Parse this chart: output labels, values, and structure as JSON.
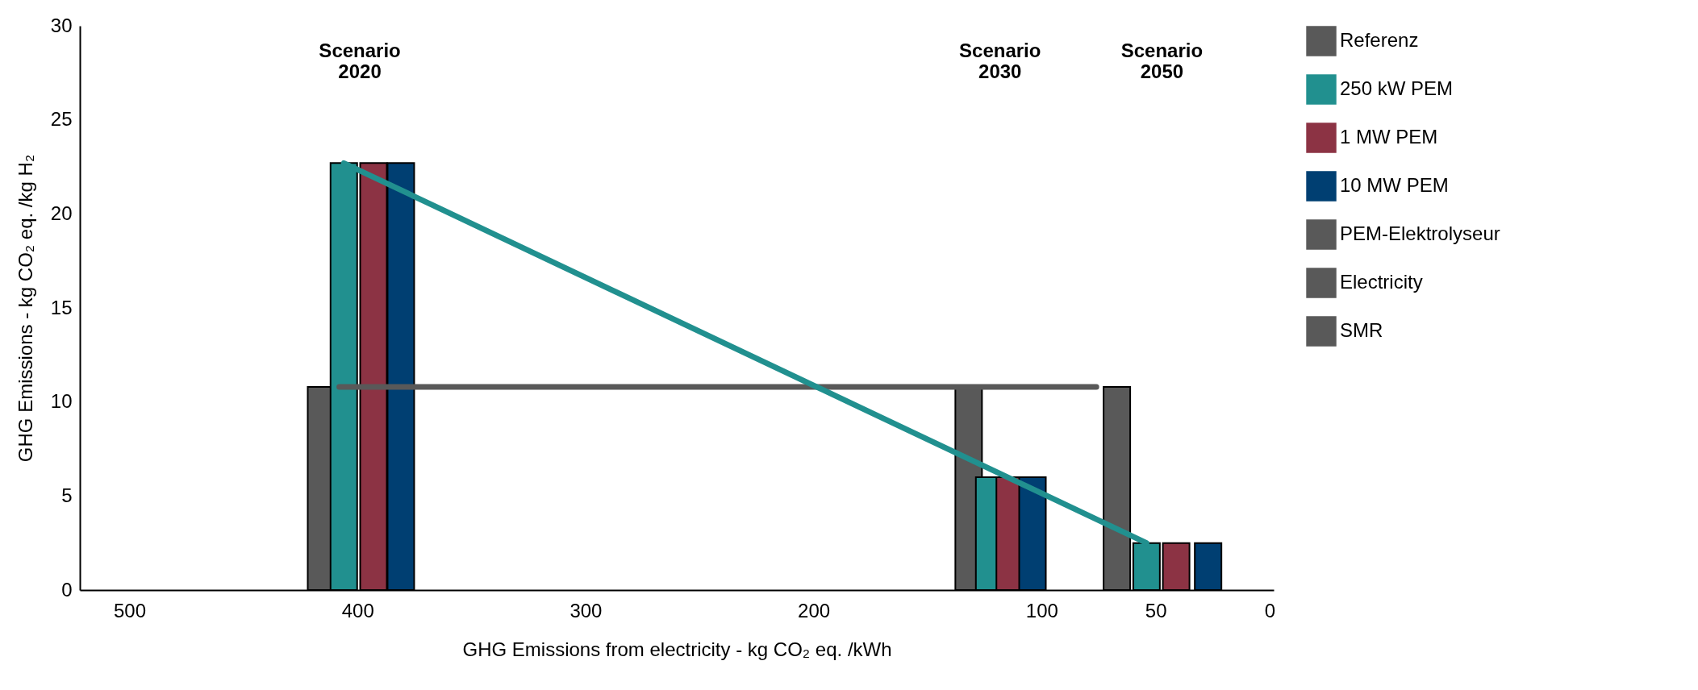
{
  "chart_data": {
    "type": "bar",
    "xlabel": "GHG Emissions from electricity -  kg CO₂ eq. /kWh",
    "ylabel": "GHG Emissions -  kg CO₂ eq. /kg H₂",
    "xlim": [
      520,
      0
    ],
    "xticks": [
      500,
      400,
      300,
      200,
      100,
      50,
      0
    ],
    "ylim": [
      0,
      30
    ],
    "yticks": [
      0,
      5,
      10,
      15,
      20,
      25,
      30
    ],
    "grid": false,
    "legend": "right",
    "series": [
      {
        "name": "Referenz",
        "color": "#595959",
        "x": [
          416,
          132,
          67
        ],
        "values": [
          10.8,
          10.8,
          10.8
        ]
      },
      {
        "name": "250 kW PEM",
        "color": "#21908f",
        "x": [
          406,
          123,
          54
        ],
        "values": [
          22.7,
          6.0,
          2.5
        ]
      },
      {
        "name": "1 MW PEM",
        "color": "#8c3344",
        "x": [
          393,
          114,
          41
        ],
        "values": [
          22.7,
          6.0,
          2.5
        ]
      },
      {
        "name": "10 MW PEM",
        "color": "#003f72",
        "x": [
          381,
          104,
          27
        ],
        "values": [
          22.7,
          6.0,
          2.5
        ]
      },
      {
        "name": "PEM-Elektrolyseur",
        "color": "#595959"
      },
      {
        "name": "Electricity",
        "color": "#595959"
      },
      {
        "name": "SMR",
        "type": "line",
        "color": "#595959",
        "x": [
          408,
          76
        ],
        "values": [
          10.8,
          10.8
        ]
      },
      {
        "type": "line",
        "color": "#21908f",
        "x": [
          406,
          54
        ],
        "values": [
          22.7,
          2.5
        ]
      }
    ],
    "annotations": [
      "Scenario 2020",
      "Scenario 2030",
      "Scenario 2050"
    ]
  }
}
